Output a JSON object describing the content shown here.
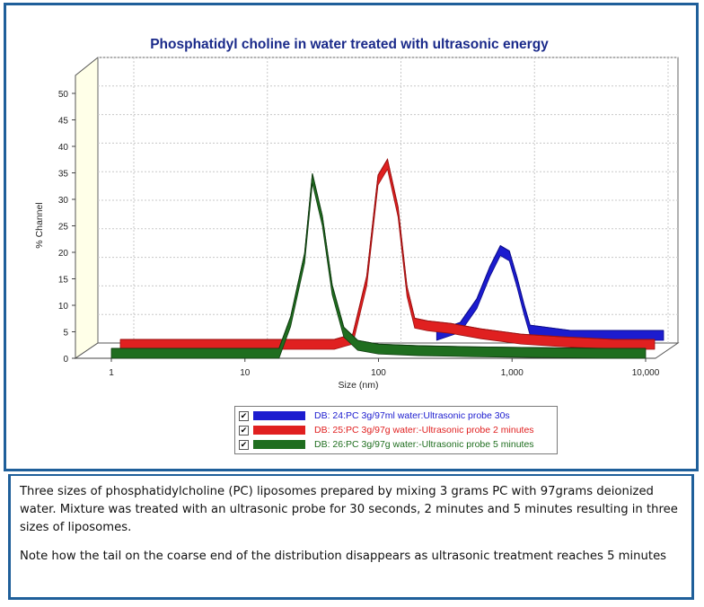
{
  "chart_data": {
    "type": "line",
    "style": "3d-ribbon",
    "title": "Phosphatidyl choline in water treated with ultrasonic energy",
    "xlabel": "Size (nm)",
    "ylabel": "% Channel",
    "x_scale": "log",
    "xlim": [
      1,
      10000
    ],
    "ylim": [
      0,
      50
    ],
    "x_ticks": [
      "1",
      "10",
      "100",
      "1,000",
      "10,000"
    ],
    "y_ticks": [
      "0",
      "5",
      "10",
      "15",
      "20",
      "25",
      "30",
      "35",
      "40",
      "45",
      "50"
    ],
    "grid": true,
    "legend_position": "bottom-center",
    "series": [
      {
        "name": "DB: 24:PC 3g/97ml water:Ultrasonic probe 30s",
        "color": "#1c1ccf",
        "x": [
          200,
          300,
          400,
          500,
          600,
          700,
          800,
          900,
          1000,
          2000,
          5000,
          10000
        ],
        "y": [
          0,
          1.5,
          6,
          12,
          16,
          15,
          10,
          5,
          1,
          0,
          0,
          0
        ]
      },
      {
        "name": "DB: 25:PC 3g/97g water:-Ultrasonic probe 2 minutes",
        "color": "#e02020",
        "x": [
          1,
          40,
          55,
          70,
          85,
          100,
          120,
          140,
          160,
          200,
          300,
          500,
          1000,
          2000,
          5000,
          10000
        ],
        "y": [
          0,
          0,
          1,
          12,
          31,
          34,
          25,
          10,
          4,
          3.5,
          3,
          2,
          1,
          0.5,
          0,
          0
        ]
      },
      {
        "name": "DB: 26:PC 3g/97g water:-Ultrasonic probe 5 minutes",
        "color": "#1f6e1f",
        "x": [
          1,
          18,
          22,
          28,
          32,
          38,
          45,
          55,
          70,
          100,
          200,
          500,
          1000,
          5000,
          10000
        ],
        "y": [
          0,
          0,
          6,
          18,
          33,
          25,
          12,
          4,
          1.5,
          0.8,
          0.5,
          0.3,
          0.2,
          0,
          0
        ]
      }
    ]
  },
  "legend": {
    "entries": [
      {
        "label": "DB: 24:PC 3g/97ml water:Ultrasonic probe 30s",
        "color": "#1c1ccf",
        "checked": true
      },
      {
        "label": "DB: 25:PC 3g/97g water:-Ultrasonic probe 2 minutes",
        "color": "#e02020",
        "checked": true
      },
      {
        "label": "DB: 26:PC 3g/97g water:-Ultrasonic probe 5 minutes",
        "color": "#1f6e1f",
        "checked": true
      }
    ],
    "check_glyph": "✔"
  },
  "caption": {
    "paragraph1": "Three sizes of phosphatidylcholine (PC) liposomes prepared by mixing 3 grams PC with 97grams deionized water. Mixture was treated with an ultrasonic probe for 30 seconds, 2 minutes and 5 minutes resulting in three sizes of liposomes.",
    "paragraph2": "Note how the tail on the coarse end of the distribution disappears as ultrasonic treatment reaches 5 minutes"
  }
}
